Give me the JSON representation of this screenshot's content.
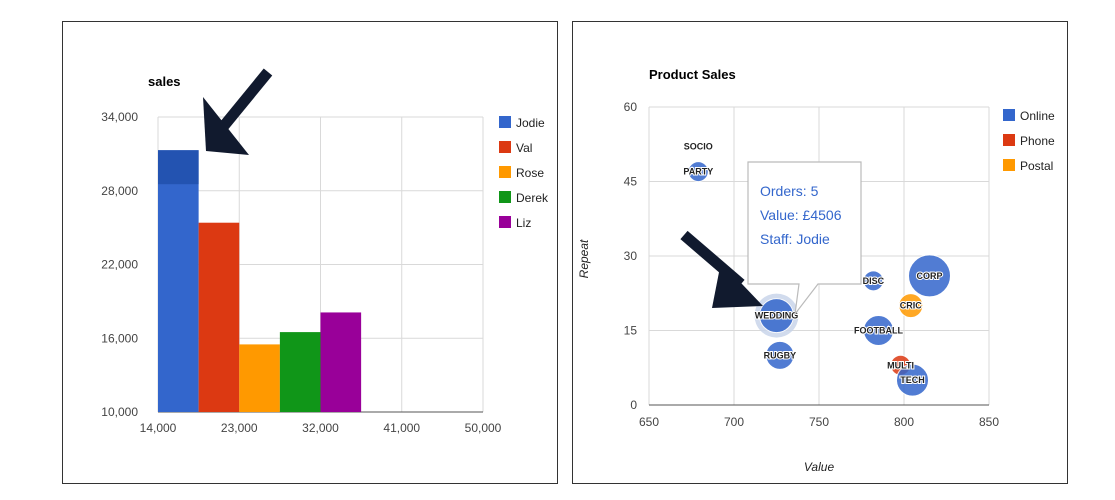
{
  "chart_data": [
    {
      "type": "bar",
      "title": "sales",
      "xlabel": "",
      "ylabel": "",
      "xlim": [
        14000,
        50000
      ],
      "ylim": [
        10000,
        34000
      ],
      "x_ticks": [
        "14,000",
        "23,000",
        "32,000",
        "41,000",
        "50,000"
      ],
      "y_ticks": [
        "10,000",
        "16,000",
        "22,000",
        "28,000",
        "34,000"
      ],
      "bar_width": 4500,
      "series": [
        {
          "name": "Jodie",
          "x": 16250,
          "value": 31300,
          "color": "#3366cc",
          "highlighted": true
        },
        {
          "name": "Val",
          "x": 20750,
          "value": 25400,
          "color": "#dc3912"
        },
        {
          "name": "Rose",
          "x": 25250,
          "value": 15500,
          "color": "#ff9900"
        },
        {
          "name": "Derek",
          "x": 29750,
          "value": 16500,
          "color": "#109618"
        },
        {
          "name": "Liz",
          "x": 34250,
          "value": 18100,
          "color": "#990099"
        }
      ],
      "legend": "right",
      "grid": true
    },
    {
      "type": "scatter",
      "title": "Product Sales",
      "xlabel": "Value",
      "ylabel": "Repeat",
      "xlim": [
        650,
        850
      ],
      "ylim": [
        0,
        60
      ],
      "x_ticks": [
        "650",
        "700",
        "750",
        "800",
        "850"
      ],
      "y_ticks": [
        "0",
        "15",
        "30",
        "45",
        "60"
      ],
      "legend": "right",
      "legend_entries": [
        {
          "name": "Online",
          "color": "#3366cc"
        },
        {
          "name": "Phone",
          "color": "#dc3912"
        },
        {
          "name": "Postal",
          "color": "#ff9900"
        }
      ],
      "points": [
        {
          "label": "SOCIO",
          "x": 679,
          "y": 52,
          "size": 0,
          "series": "Online"
        },
        {
          "label": "PARTY",
          "x": 679,
          "y": 47,
          "size": 10,
          "series": "Online"
        },
        {
          "label": "WEDDING",
          "x": 725,
          "y": 18,
          "size": 17,
          "series": "Online",
          "highlighted": true
        },
        {
          "label": "RUGBY",
          "x": 727,
          "y": 10,
          "size": 14,
          "series": "Online"
        },
        {
          "label": "DISC",
          "x": 782,
          "y": 25,
          "size": 10,
          "series": "Online"
        },
        {
          "label": "CORP",
          "x": 815,
          "y": 26,
          "size": 21,
          "series": "Online"
        },
        {
          "label": "CRIC",
          "x": 804,
          "y": 20,
          "size": 12,
          "series": "Postal"
        },
        {
          "label": "FOOTBALL",
          "x": 785,
          "y": 15,
          "size": 15,
          "series": "Online"
        },
        {
          "label": "MULTI",
          "x": 798,
          "y": 8,
          "size": 10,
          "series": "Phone"
        },
        {
          "label": "TECH",
          "x": 805,
          "y": 5,
          "size": 16,
          "series": "Online"
        }
      ],
      "tooltip": {
        "lines": [
          "Orders: 5",
          "Value: £4506",
          "Staff: Jodie"
        ]
      }
    }
  ]
}
